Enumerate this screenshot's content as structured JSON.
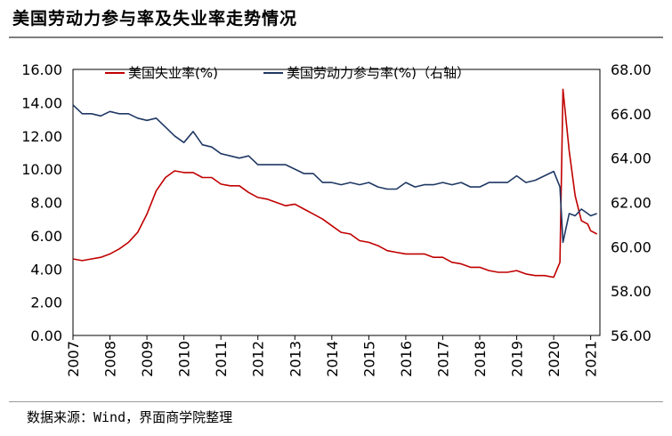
{
  "title": "美国劳动力参与率及失业率走势情况",
  "source": "数据来源：Wind，界面商学院整理",
  "chart_data": {
    "type": "line",
    "x_tick_labels": [
      "2007",
      "2008",
      "2009",
      "2010",
      "2011",
      "2012",
      "2013",
      "2014",
      "2015",
      "2016",
      "2017",
      "2018",
      "2019",
      "2020",
      "2021"
    ],
    "x_range": [
      2007.0,
      2021.25
    ],
    "ylim_left": [
      0,
      16
    ],
    "ylim_right": [
      56,
      68
    ],
    "left_tick_labels": [
      "0.00",
      "2.00",
      "4.00",
      "6.00",
      "8.00",
      "10.00",
      "12.00",
      "14.00",
      "16.00"
    ],
    "right_tick_labels": [
      "56.00",
      "58.00",
      "60.00",
      "62.00",
      "64.00",
      "66.00",
      "68.00"
    ],
    "legend": "top",
    "series": [
      {
        "name": "美国失业率(%)",
        "axis": "left",
        "color": "#c00000",
        "points": [
          [
            2007.0,
            4.6
          ],
          [
            2007.25,
            4.5
          ],
          [
            2007.5,
            4.6
          ],
          [
            2007.75,
            4.7
          ],
          [
            2008.0,
            4.9
          ],
          [
            2008.25,
            5.2
          ],
          [
            2008.5,
            5.6
          ],
          [
            2008.75,
            6.2
          ],
          [
            2009.0,
            7.3
          ],
          [
            2009.25,
            8.7
          ],
          [
            2009.5,
            9.5
          ],
          [
            2009.75,
            9.9
          ],
          [
            2010.0,
            9.8
          ],
          [
            2010.25,
            9.8
          ],
          [
            2010.5,
            9.5
          ],
          [
            2010.75,
            9.5
          ],
          [
            2011.0,
            9.1
          ],
          [
            2011.25,
            9.0
          ],
          [
            2011.5,
            9.0
          ],
          [
            2011.75,
            8.6
          ],
          [
            2012.0,
            8.3
          ],
          [
            2012.25,
            8.2
          ],
          [
            2012.5,
            8.0
          ],
          [
            2012.75,
            7.8
          ],
          [
            2013.0,
            7.9
          ],
          [
            2013.25,
            7.6
          ],
          [
            2013.5,
            7.3
          ],
          [
            2013.75,
            7.0
          ],
          [
            2014.0,
            6.6
          ],
          [
            2014.25,
            6.2
          ],
          [
            2014.5,
            6.1
          ],
          [
            2014.75,
            5.7
          ],
          [
            2015.0,
            5.6
          ],
          [
            2015.25,
            5.4
          ],
          [
            2015.5,
            5.1
          ],
          [
            2015.75,
            5.0
          ],
          [
            2016.0,
            4.9
          ],
          [
            2016.25,
            4.9
          ],
          [
            2016.5,
            4.9
          ],
          [
            2016.75,
            4.7
          ],
          [
            2017.0,
            4.7
          ],
          [
            2017.25,
            4.4
          ],
          [
            2017.5,
            4.3
          ],
          [
            2017.75,
            4.1
          ],
          [
            2018.0,
            4.1
          ],
          [
            2018.25,
            3.9
          ],
          [
            2018.5,
            3.8
          ],
          [
            2018.75,
            3.8
          ],
          [
            2019.0,
            3.9
          ],
          [
            2019.25,
            3.7
          ],
          [
            2019.5,
            3.6
          ],
          [
            2019.75,
            3.6
          ],
          [
            2020.0,
            3.5
          ],
          [
            2020.17,
            4.4
          ],
          [
            2020.25,
            14.8
          ],
          [
            2020.42,
            11.1
          ],
          [
            2020.58,
            8.4
          ],
          [
            2020.75,
            6.9
          ],
          [
            2020.92,
            6.7
          ],
          [
            2021.0,
            6.3
          ],
          [
            2021.17,
            6.1
          ]
        ]
      },
      {
        "name": "美国劳动力参与率(%)（右轴）",
        "axis": "right",
        "color": "#1f3864",
        "points": [
          [
            2007.0,
            66.4
          ],
          [
            2007.25,
            66.0
          ],
          [
            2007.5,
            66.0
          ],
          [
            2007.75,
            65.9
          ],
          [
            2008.0,
            66.1
          ],
          [
            2008.25,
            66.0
          ],
          [
            2008.5,
            66.0
          ],
          [
            2008.75,
            65.8
          ],
          [
            2009.0,
            65.7
          ],
          [
            2009.25,
            65.8
          ],
          [
            2009.5,
            65.4
          ],
          [
            2009.75,
            65.0
          ],
          [
            2010.0,
            64.7
          ],
          [
            2010.25,
            65.2
          ],
          [
            2010.5,
            64.6
          ],
          [
            2010.75,
            64.5
          ],
          [
            2011.0,
            64.2
          ],
          [
            2011.25,
            64.1
          ],
          [
            2011.5,
            64.0
          ],
          [
            2011.75,
            64.1
          ],
          [
            2012.0,
            63.7
          ],
          [
            2012.25,
            63.7
          ],
          [
            2012.5,
            63.7
          ],
          [
            2012.75,
            63.7
          ],
          [
            2013.0,
            63.5
          ],
          [
            2013.25,
            63.3
          ],
          [
            2013.5,
            63.3
          ],
          [
            2013.75,
            62.9
          ],
          [
            2014.0,
            62.9
          ],
          [
            2014.25,
            62.8
          ],
          [
            2014.5,
            62.9
          ],
          [
            2014.75,
            62.8
          ],
          [
            2015.0,
            62.9
          ],
          [
            2015.25,
            62.7
          ],
          [
            2015.5,
            62.6
          ],
          [
            2015.75,
            62.6
          ],
          [
            2016.0,
            62.9
          ],
          [
            2016.25,
            62.7
          ],
          [
            2016.5,
            62.8
          ],
          [
            2016.75,
            62.8
          ],
          [
            2017.0,
            62.9
          ],
          [
            2017.25,
            62.8
          ],
          [
            2017.5,
            62.9
          ],
          [
            2017.75,
            62.7
          ],
          [
            2018.0,
            62.7
          ],
          [
            2018.25,
            62.9
          ],
          [
            2018.5,
            62.9
          ],
          [
            2018.75,
            62.9
          ],
          [
            2019.0,
            63.2
          ],
          [
            2019.25,
            62.9
          ],
          [
            2019.5,
            63.0
          ],
          [
            2019.75,
            63.2
          ],
          [
            2020.0,
            63.4
          ],
          [
            2020.17,
            62.7
          ],
          [
            2020.25,
            60.2
          ],
          [
            2020.42,
            61.5
          ],
          [
            2020.58,
            61.4
          ],
          [
            2020.75,
            61.7
          ],
          [
            2020.92,
            61.5
          ],
          [
            2021.0,
            61.4
          ],
          [
            2021.17,
            61.5
          ]
        ]
      }
    ]
  }
}
